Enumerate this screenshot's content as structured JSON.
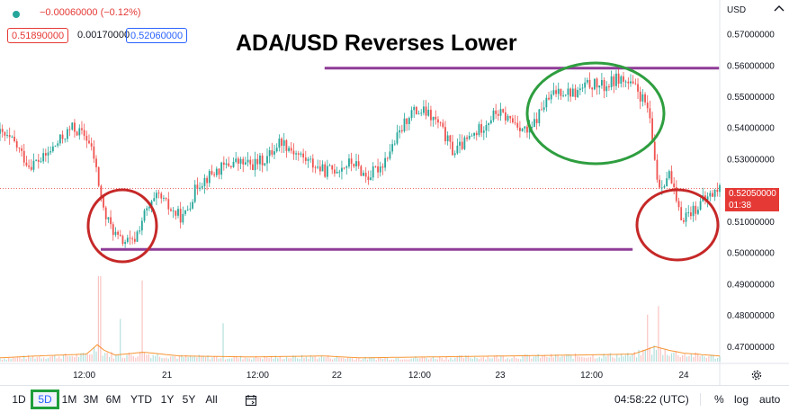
{
  "header": {
    "change_text": "−0.00060000 (−0.12%)",
    "bid": "0.51890000",
    "spread": "0.00170000",
    "ask": "0.52060000"
  },
  "annotation_title": "ADA/USD Reverses Lower",
  "price_axis": {
    "currency": "USD",
    "last_price": "0.52050000",
    "countdown": "01:38"
  },
  "toolbar": {
    "timeframes": [
      "1D",
      "5D",
      "1M",
      "3M",
      "6M",
      "YTD",
      "1Y",
      "5Y",
      "All"
    ],
    "active_timeframe": "5D",
    "clock": "04:58:22 (UTC)",
    "percent_label": "%",
    "log_label": "log",
    "auto_label": "auto"
  },
  "colors": {
    "up_candle": "#26a69a",
    "down_candle": "#ef5350",
    "support_resistance_line": "#8e3c97",
    "red_circle": "#c62828",
    "green_circle": "#2e9e3f",
    "price_tag": "#e53935"
  },
  "icons": [
    "gear-icon",
    "calendar-range-icon",
    "chevron-up-icon",
    "status-dot-icon"
  ],
  "chart_data": {
    "type": "candlestick",
    "title": "ADA/USD Reverses Lower",
    "y_ticks": [
      "0.57000000",
      "0.56000000",
      "0.55000000",
      "0.54000000",
      "0.53000000",
      "0.51000000",
      "0.50000000",
      "0.49000000",
      "0.48000000",
      "0.47000000"
    ],
    "x_ticks": [
      "12:00",
      "21",
      "12:00",
      "22",
      "12:00",
      "23",
      "12:00",
      "24"
    ],
    "ylim": [
      0.4645,
      0.5785
    ],
    "grid": false,
    "close_path": [
      [
        0,
        0.538
      ],
      [
        0.02,
        0.535
      ],
      [
        0.04,
        0.528
      ],
      [
        0.06,
        0.53
      ],
      [
        0.08,
        0.535
      ],
      [
        0.1,
        0.54
      ],
      [
        0.12,
        0.537
      ],
      [
        0.13,
        0.531
      ],
      [
        0.145,
        0.512
      ],
      [
        0.165,
        0.504
      ],
      [
        0.185,
        0.503
      ],
      [
        0.2,
        0.512
      ],
      [
        0.22,
        0.518
      ],
      [
        0.24,
        0.513
      ],
      [
        0.255,
        0.511
      ],
      [
        0.275,
        0.522
      ],
      [
        0.3,
        0.526
      ],
      [
        0.325,
        0.529
      ],
      [
        0.35,
        0.528
      ],
      [
        0.37,
        0.53
      ],
      [
        0.39,
        0.536
      ],
      [
        0.41,
        0.532
      ],
      [
        0.43,
        0.529
      ],
      [
        0.45,
        0.526
      ],
      [
        0.47,
        0.527
      ],
      [
        0.49,
        0.529
      ],
      [
        0.51,
        0.524
      ],
      [
        0.53,
        0.528
      ],
      [
        0.555,
        0.538
      ],
      [
        0.57,
        0.545
      ],
      [
        0.59,
        0.545
      ],
      [
        0.61,
        0.541
      ],
      [
        0.63,
        0.532
      ],
      [
        0.66,
        0.538
      ],
      [
        0.69,
        0.545
      ],
      [
        0.72,
        0.541
      ],
      [
        0.735,
        0.538
      ],
      [
        0.755,
        0.547
      ],
      [
        0.775,
        0.552
      ],
      [
        0.8,
        0.551
      ],
      [
        0.82,
        0.554
      ],
      [
        0.84,
        0.553
      ],
      [
        0.86,
        0.556
      ],
      [
        0.885,
        0.552
      ],
      [
        0.9,
        0.546
      ],
      [
        0.915,
        0.521
      ],
      [
        0.93,
        0.525
      ],
      [
        0.945,
        0.511
      ],
      [
        0.965,
        0.514
      ],
      [
        0.985,
        0.518
      ],
      [
        1.0,
        0.5205
      ]
    ],
    "volume_path": [
      [
        0,
        0.2
      ],
      [
        0.05,
        0.3
      ],
      [
        0.12,
        0.4
      ],
      [
        0.135,
        0.9
      ],
      [
        0.145,
        0.6
      ],
      [
        0.16,
        0.35
      ],
      [
        0.2,
        0.5
      ],
      [
        0.25,
        0.3
      ],
      [
        0.35,
        0.25
      ],
      [
        0.45,
        0.3
      ],
      [
        0.5,
        0.2
      ],
      [
        0.6,
        0.25
      ],
      [
        0.7,
        0.3
      ],
      [
        0.8,
        0.35
      ],
      [
        0.88,
        0.4
      ],
      [
        0.91,
        0.8
      ],
      [
        0.93,
        0.6
      ],
      [
        0.95,
        0.45
      ],
      [
        1.0,
        0.3
      ]
    ],
    "volume_spikes": [
      [
        0.138,
        1.0
      ],
      [
        0.168,
        0.5
      ],
      [
        0.198,
        0.95
      ],
      [
        0.31,
        0.45
      ],
      [
        0.9,
        0.55
      ],
      [
        0.915,
        0.65
      ]
    ],
    "resistance_line": {
      "from": "22",
      "value": 0.559
    },
    "support_line": {
      "from": "21",
      "value": 0.501
    },
    "highlight_circles": [
      {
        "color": "red",
        "around": "21 low"
      },
      {
        "color": "green",
        "around": "23 high"
      },
      {
        "color": "red",
        "around": "24 drop"
      }
    ],
    "last_price": 0.5205
  }
}
